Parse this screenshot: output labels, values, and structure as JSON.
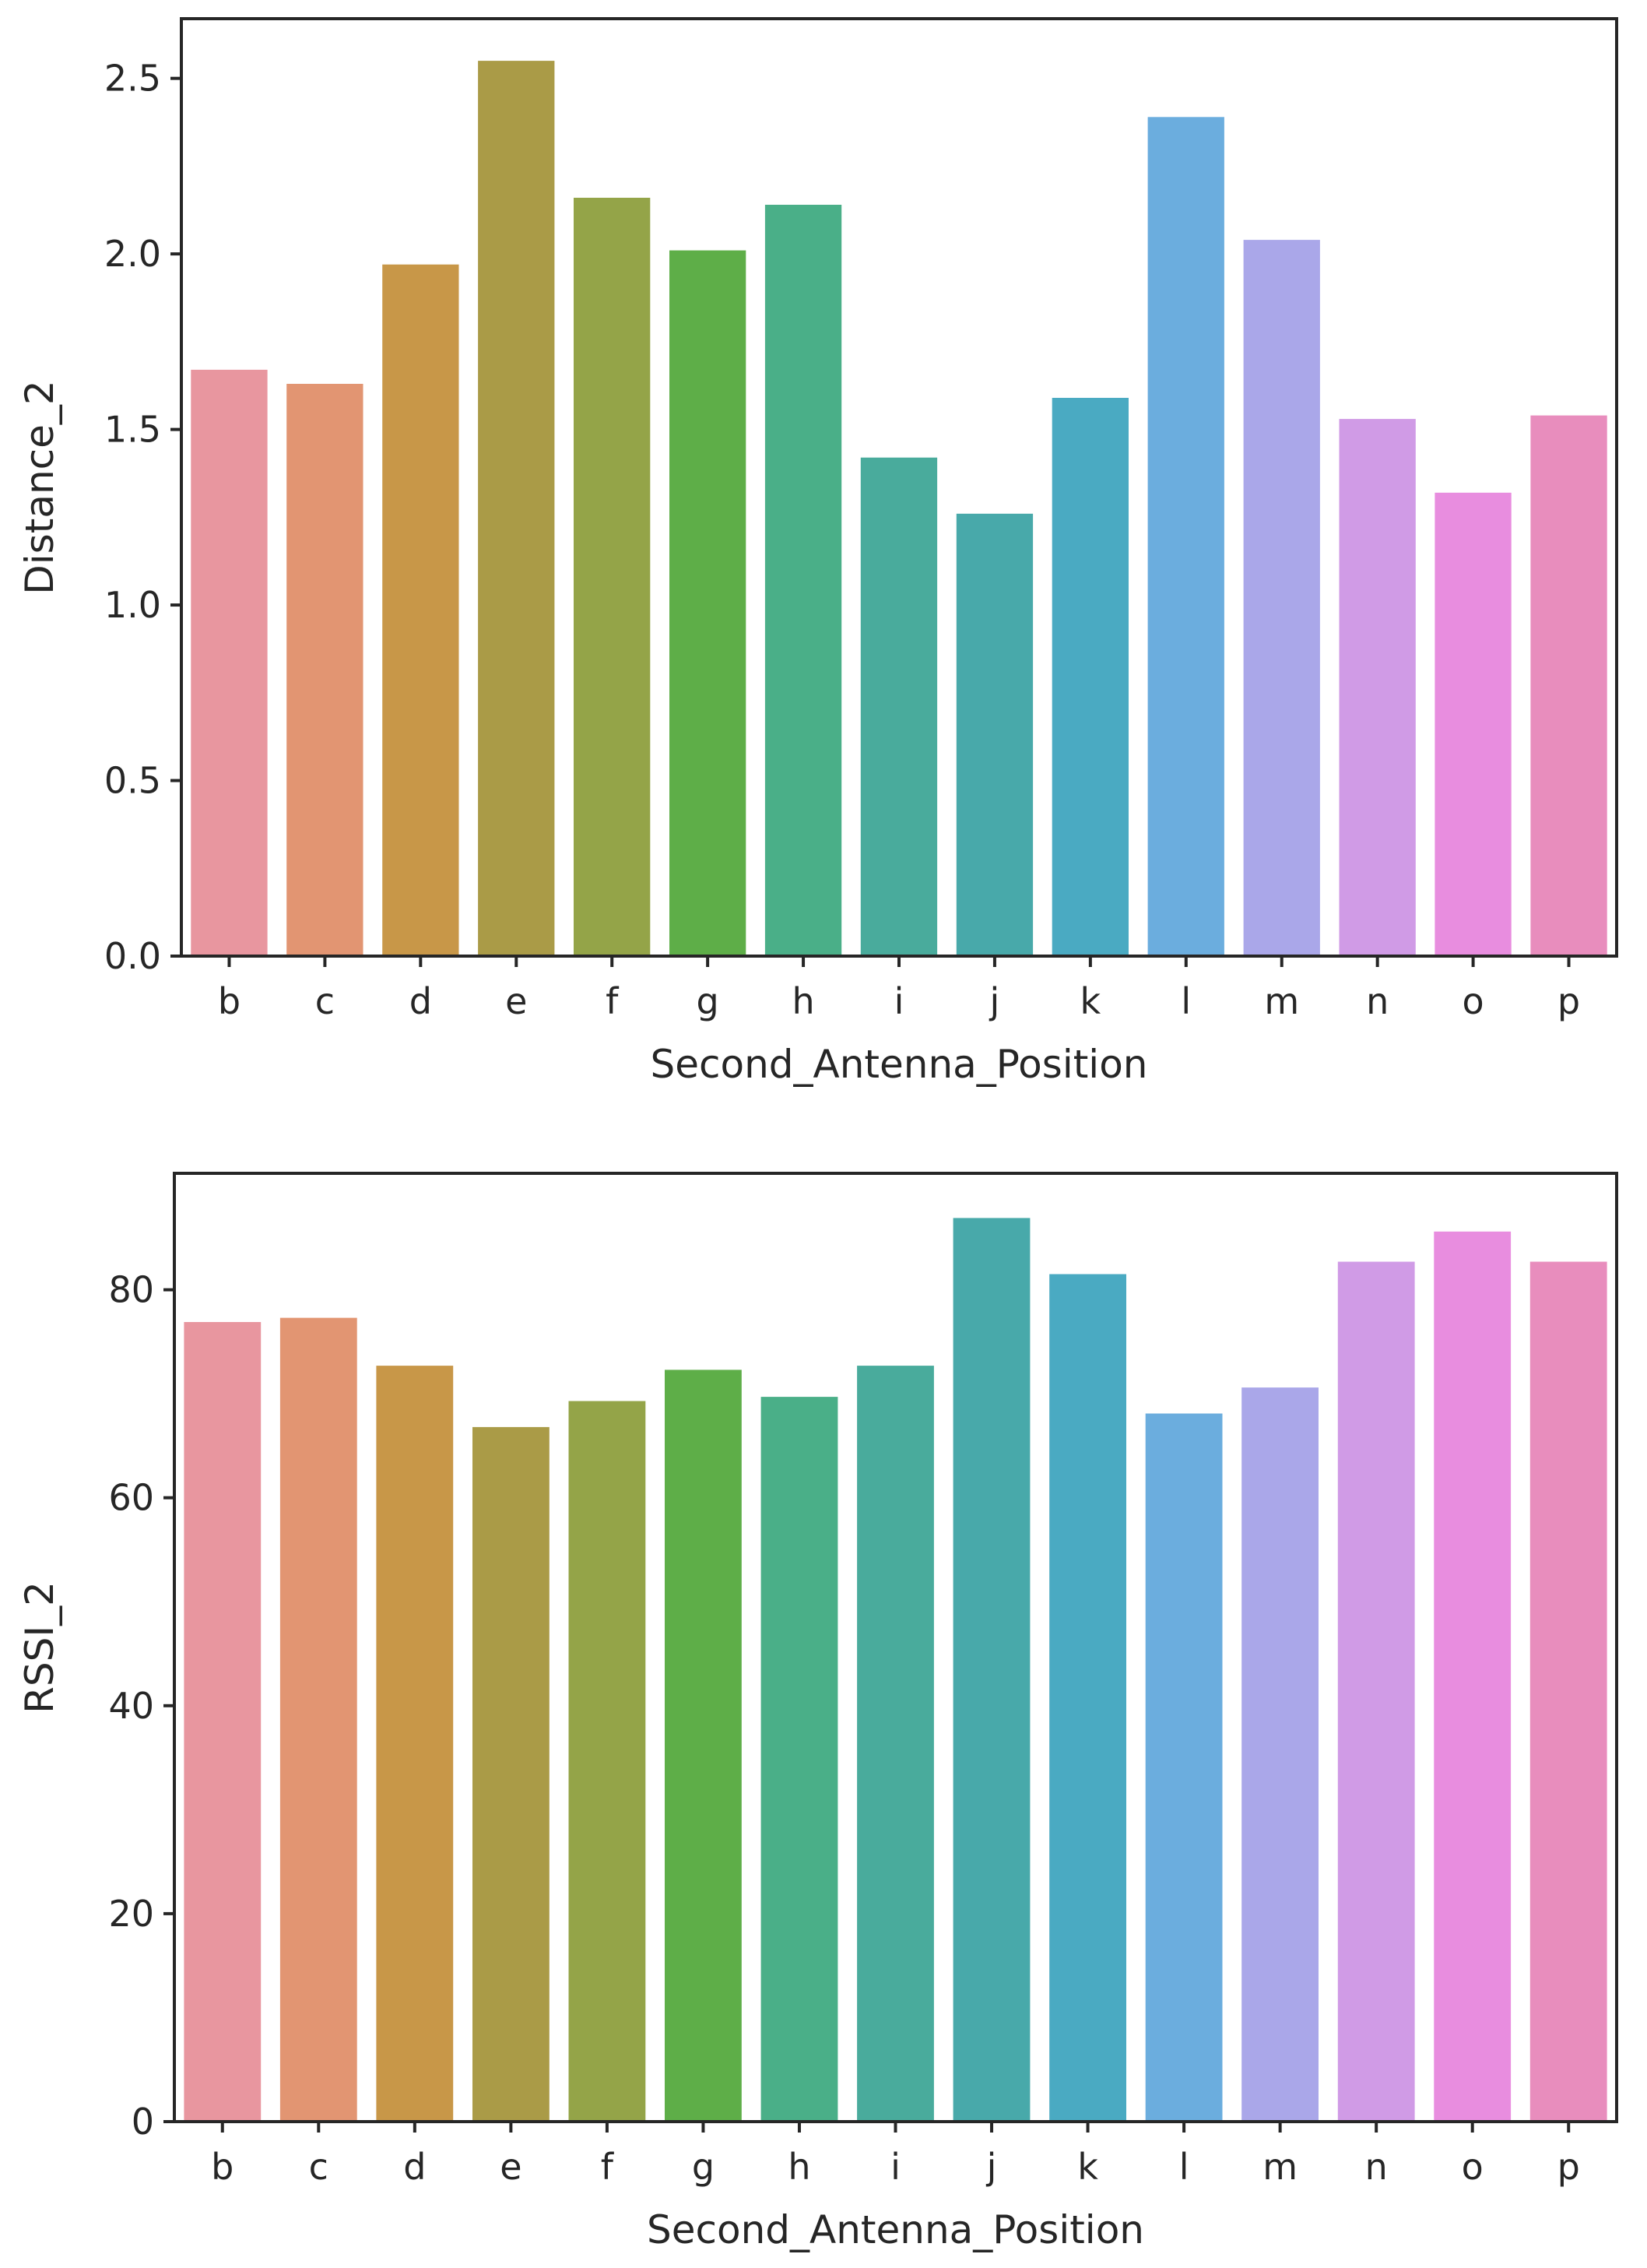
{
  "chart_data": [
    {
      "type": "bar",
      "categories": [
        "b",
        "c",
        "d",
        "e",
        "f",
        "g",
        "h",
        "i",
        "j",
        "k",
        "l",
        "m",
        "n",
        "o",
        "p"
      ],
      "values": [
        1.67,
        1.63,
        1.97,
        2.55,
        2.16,
        2.01,
        2.14,
        1.42,
        1.26,
        1.59,
        2.39,
        2.04,
        1.53,
        1.32,
        1.54
      ],
      "colors": [
        "#e8969f",
        "#e29572",
        "#c89748",
        "#aa9b47",
        "#94a448",
        "#5eae48",
        "#4aaf88",
        "#49ab9c",
        "#48a9aa",
        "#4aaac2",
        "#6badde",
        "#aaa7e9",
        "#d09be6",
        "#e88ddf",
        "#e88dbd"
      ],
      "xlabel": "Second_Antenna_Position",
      "ylabel": "Distance_2",
      "ylim": [
        0,
        2.67
      ],
      "yticks": [
        0.0,
        0.5,
        1.0,
        1.5,
        2.0,
        2.5
      ],
      "ytick_labels": [
        "0.0",
        "0.5",
        "1.0",
        "1.5",
        "2.0",
        "2.5"
      ],
      "grid": false
    },
    {
      "type": "bar",
      "categories": [
        "b",
        "c",
        "d",
        "e",
        "f",
        "g",
        "h",
        "i",
        "j",
        "k",
        "l",
        "m",
        "n",
        "o",
        "p"
      ],
      "values": [
        76.9,
        77.3,
        72.7,
        66.8,
        69.3,
        72.3,
        69.7,
        72.7,
        86.9,
        81.5,
        68.1,
        70.6,
        82.7,
        85.6,
        82.7
      ],
      "colors": [
        "#e8969f",
        "#e29572",
        "#c89748",
        "#aa9b47",
        "#94a448",
        "#5eae48",
        "#4aaf88",
        "#49ab9c",
        "#48a9aa",
        "#4aaac2",
        "#6badde",
        "#aaa7e9",
        "#d09be6",
        "#e88ddf",
        "#e88dbd"
      ],
      "xlabel": "Second_Antenna_Position",
      "ylabel": "RSSI_2",
      "ylim": [
        0,
        91.2
      ],
      "yticks": [
        0,
        20,
        40,
        60,
        80
      ],
      "ytick_labels": [
        "0",
        "20",
        "40",
        "60",
        "80"
      ],
      "grid": false
    }
  ]
}
